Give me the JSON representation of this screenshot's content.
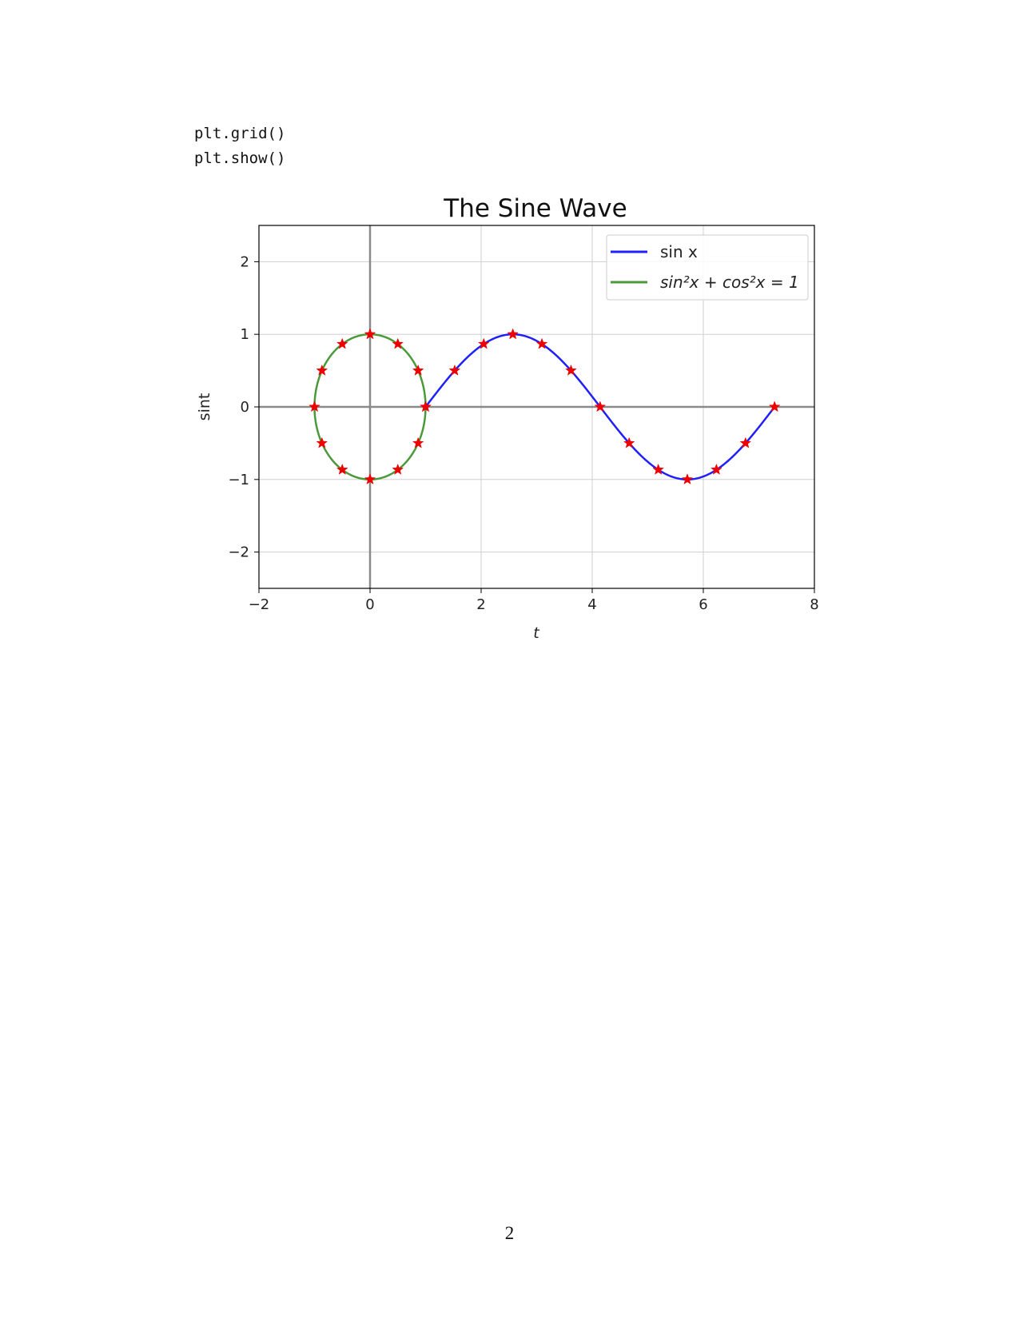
{
  "code_lines": [
    "plt.grid()",
    "plt.show()"
  ],
  "page_number": "2",
  "chart_data": {
    "type": "line",
    "title": "The Sine Wave",
    "xlabel": "t",
    "ylabel": "sint",
    "xlim": [
      -2,
      8
    ],
    "ylim": [
      -2.5,
      2.5
    ],
    "xticks": [
      -2,
      0,
      2,
      4,
      6,
      8
    ],
    "yticks": [
      -2,
      -1,
      0,
      1,
      2
    ],
    "xtick_labels": [
      "−2",
      "0",
      "2",
      "4",
      "6",
      "8"
    ],
    "ytick_labels": [
      "−2",
      "−1",
      "0",
      "1",
      "2"
    ],
    "grid": true,
    "axis_lines": {
      "x": 0,
      "y": 0,
      "color": "#8a8a8a"
    },
    "legend_position": "upper right",
    "series": [
      {
        "name": "sinx",
        "legend_label": "sin x",
        "color": "#2020ff",
        "function": "y = sin(t - 1)",
        "t_range": [
          1,
          7.283
        ],
        "markers": {
          "x": [
            1.0,
            1.524,
            2.047,
            2.571,
            3.094,
            3.618,
            4.142,
            4.665,
            5.189,
            5.712,
            6.236,
            6.76,
            7.283
          ],
          "y": [
            0.0,
            0.5,
            0.866,
            1.0,
            0.866,
            0.5,
            0.0,
            -0.5,
            -0.866,
            -1.0,
            -0.866,
            -0.5,
            0.0
          ]
        }
      },
      {
        "name": "sin^2x+cos^2x=1",
        "legend_label": "sin²x + cos²x = 1",
        "color": "#4a9a3a",
        "function": "x = cos(θ), y = sin(θ)",
        "markers": {
          "x": [
            1.0,
            0.866,
            0.5,
            0.0,
            -0.5,
            -0.866,
            -1.0,
            -0.866,
            -0.5,
            0.0,
            0.5,
            0.866
          ],
          "y": [
            0.0,
            0.5,
            0.866,
            1.0,
            0.866,
            0.5,
            0.0,
            -0.5,
            -0.866,
            -1.0,
            -0.866,
            -0.5
          ]
        }
      }
    ],
    "marker_style": {
      "shape": "star",
      "color": "#ee0000"
    }
  }
}
